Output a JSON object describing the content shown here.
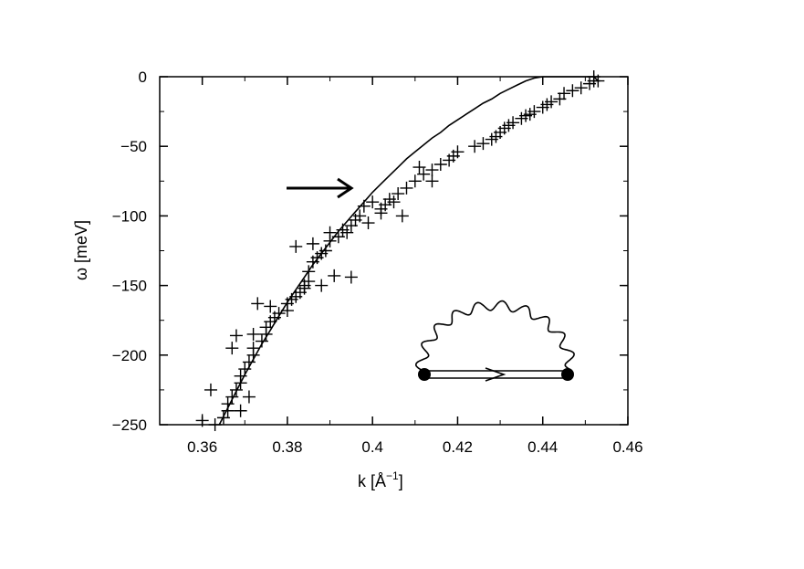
{
  "chart_data": {
    "type": "scatter",
    "xlabel_main": "k [Å",
    "xlabel_sup": "−1",
    "xlabel_close": "]",
    "ylabel": "ω [meV]",
    "xlim": [
      0.35,
      0.46
    ],
    "ylim": [
      -250,
      0
    ],
    "x_ticks": [
      0.36,
      0.38,
      0.4,
      0.42,
      0.44,
      0.46
    ],
    "x_tick_labels": [
      "0.36",
      "0.38",
      "0.4",
      "0.42",
      "0.44",
      "0.46"
    ],
    "y_ticks": [
      0,
      -50,
      -100,
      -150,
      -200,
      -250
    ],
    "y_tick_labels": [
      "0",
      "−50",
      "−100",
      "−150",
      "−200",
      "−250"
    ],
    "grid": false,
    "series": [
      {
        "marker": "plus",
        "points": [
          [
            0.452,
            0
          ],
          [
            0.452,
            -3
          ],
          [
            0.453,
            -3
          ],
          [
            0.451,
            -5
          ],
          [
            0.447,
            -10
          ],
          [
            0.445,
            -12
          ],
          [
            0.442,
            -18
          ],
          [
            0.44,
            -22
          ],
          [
            0.438,
            -25
          ],
          [
            0.436,
            -28
          ],
          [
            0.435,
            -30
          ],
          [
            0.433,
            -33
          ],
          [
            0.431,
            -37
          ],
          [
            0.43,
            -40
          ],
          [
            0.429,
            -43
          ],
          [
            0.428,
            -45
          ],
          [
            0.424,
            -50
          ],
          [
            0.42,
            -54
          ],
          [
            0.419,
            -57
          ],
          [
            0.418,
            -60
          ],
          [
            0.416,
            -63
          ],
          [
            0.414,
            -67
          ],
          [
            0.412,
            -70
          ],
          [
            0.411,
            -65
          ],
          [
            0.41,
            -75
          ],
          [
            0.408,
            -80
          ],
          [
            0.406,
            -84
          ],
          [
            0.405,
            -90
          ],
          [
            0.404,
            -88
          ],
          [
            0.403,
            -92
          ],
          [
            0.402,
            -95
          ],
          [
            0.4,
            -90
          ],
          [
            0.398,
            -93
          ],
          [
            0.397,
            -100
          ],
          [
            0.396,
            -103
          ],
          [
            0.395,
            -107
          ],
          [
            0.393,
            -110
          ],
          [
            0.392,
            -115
          ],
          [
            0.39,
            -118
          ],
          [
            0.389,
            -125
          ],
          [
            0.388,
            -127
          ],
          [
            0.387,
            -130
          ],
          [
            0.386,
            -133
          ],
          [
            0.385,
            -140
          ],
          [
            0.385,
            -147
          ],
          [
            0.384,
            -150
          ],
          [
            0.383,
            -155
          ],
          [
            0.382,
            -158
          ],
          [
            0.381,
            -160
          ],
          [
            0.38,
            -163
          ],
          [
            0.38,
            -168
          ],
          [
            0.378,
            -170
          ],
          [
            0.377,
            -173
          ],
          [
            0.376,
            -176
          ],
          [
            0.375,
            -180
          ],
          [
            0.375,
            -185
          ],
          [
            0.374,
            -190
          ],
          [
            0.373,
            -163
          ],
          [
            0.372,
            -195
          ],
          [
            0.372,
            -200
          ],
          [
            0.371,
            -205
          ],
          [
            0.37,
            -210
          ],
          [
            0.369,
            -215
          ],
          [
            0.369,
            -220
          ],
          [
            0.368,
            -225
          ],
          [
            0.367,
            -230
          ],
          [
            0.366,
            -235
          ],
          [
            0.366,
            -240
          ],
          [
            0.365,
            -245
          ],
          [
            0.363,
            -250
          ],
          [
            0.362,
            -225
          ],
          [
            0.36,
            -247
          ],
          [
            0.407,
            -100
          ],
          [
            0.395,
            -144
          ],
          [
            0.388,
            -150
          ],
          [
            0.391,
            -143
          ],
          [
            0.376,
            -165
          ],
          [
            0.372,
            -185
          ],
          [
            0.368,
            -186
          ],
          [
            0.367,
            -195
          ],
          [
            0.369,
            -240
          ],
          [
            0.371,
            -230
          ],
          [
            0.384,
            -152
          ],
          [
            0.382,
            -122
          ],
          [
            0.386,
            -120
          ],
          [
            0.39,
            -112
          ],
          [
            0.394,
            -112
          ],
          [
            0.399,
            -105
          ],
          [
            0.402,
            -98
          ],
          [
            0.414,
            -75
          ],
          [
            0.426,
            -48
          ],
          [
            0.432,
            -35
          ],
          [
            0.437,
            -27
          ],
          [
            0.441,
            -20
          ],
          [
            0.444,
            -16
          ],
          [
            0.449,
            -8
          ]
        ]
      },
      {
        "marker": "line",
        "curve": [
          [
            0.364,
            -250
          ],
          [
            0.366,
            -238
          ],
          [
            0.368,
            -226
          ],
          [
            0.37,
            -214
          ],
          [
            0.372,
            -203
          ],
          [
            0.374,
            -192
          ],
          [
            0.376,
            -182
          ],
          [
            0.378,
            -172
          ],
          [
            0.38,
            -162
          ],
          [
            0.382,
            -153
          ],
          [
            0.384,
            -144
          ],
          [
            0.386,
            -135
          ],
          [
            0.388,
            -127
          ],
          [
            0.39,
            -119
          ],
          [
            0.392,
            -111
          ],
          [
            0.394,
            -104
          ],
          [
            0.396,
            -97
          ],
          [
            0.398,
            -90
          ],
          [
            0.4,
            -83
          ],
          [
            0.402,
            -77
          ],
          [
            0.404,
            -71
          ],
          [
            0.406,
            -65
          ],
          [
            0.408,
            -59
          ],
          [
            0.41,
            -54
          ],
          [
            0.412,
            -49
          ],
          [
            0.414,
            -44
          ],
          [
            0.416,
            -40
          ],
          [
            0.418,
            -35
          ],
          [
            0.42,
            -31
          ],
          [
            0.422,
            -27
          ],
          [
            0.424,
            -23
          ],
          [
            0.426,
            -19
          ],
          [
            0.428,
            -16
          ],
          [
            0.43,
            -12
          ],
          [
            0.432,
            -9
          ],
          [
            0.434,
            -6
          ],
          [
            0.436,
            -3
          ],
          [
            0.438,
            -1
          ],
          [
            0.44,
            1
          ],
          [
            0.442,
            3
          ],
          [
            0.444,
            5
          ],
          [
            0.446,
            6
          ],
          [
            0.448,
            6
          ],
          [
            0.45,
            4
          ],
          [
            0.452,
            0
          ],
          [
            0.453,
            -3
          ]
        ]
      }
    ]
  }
}
